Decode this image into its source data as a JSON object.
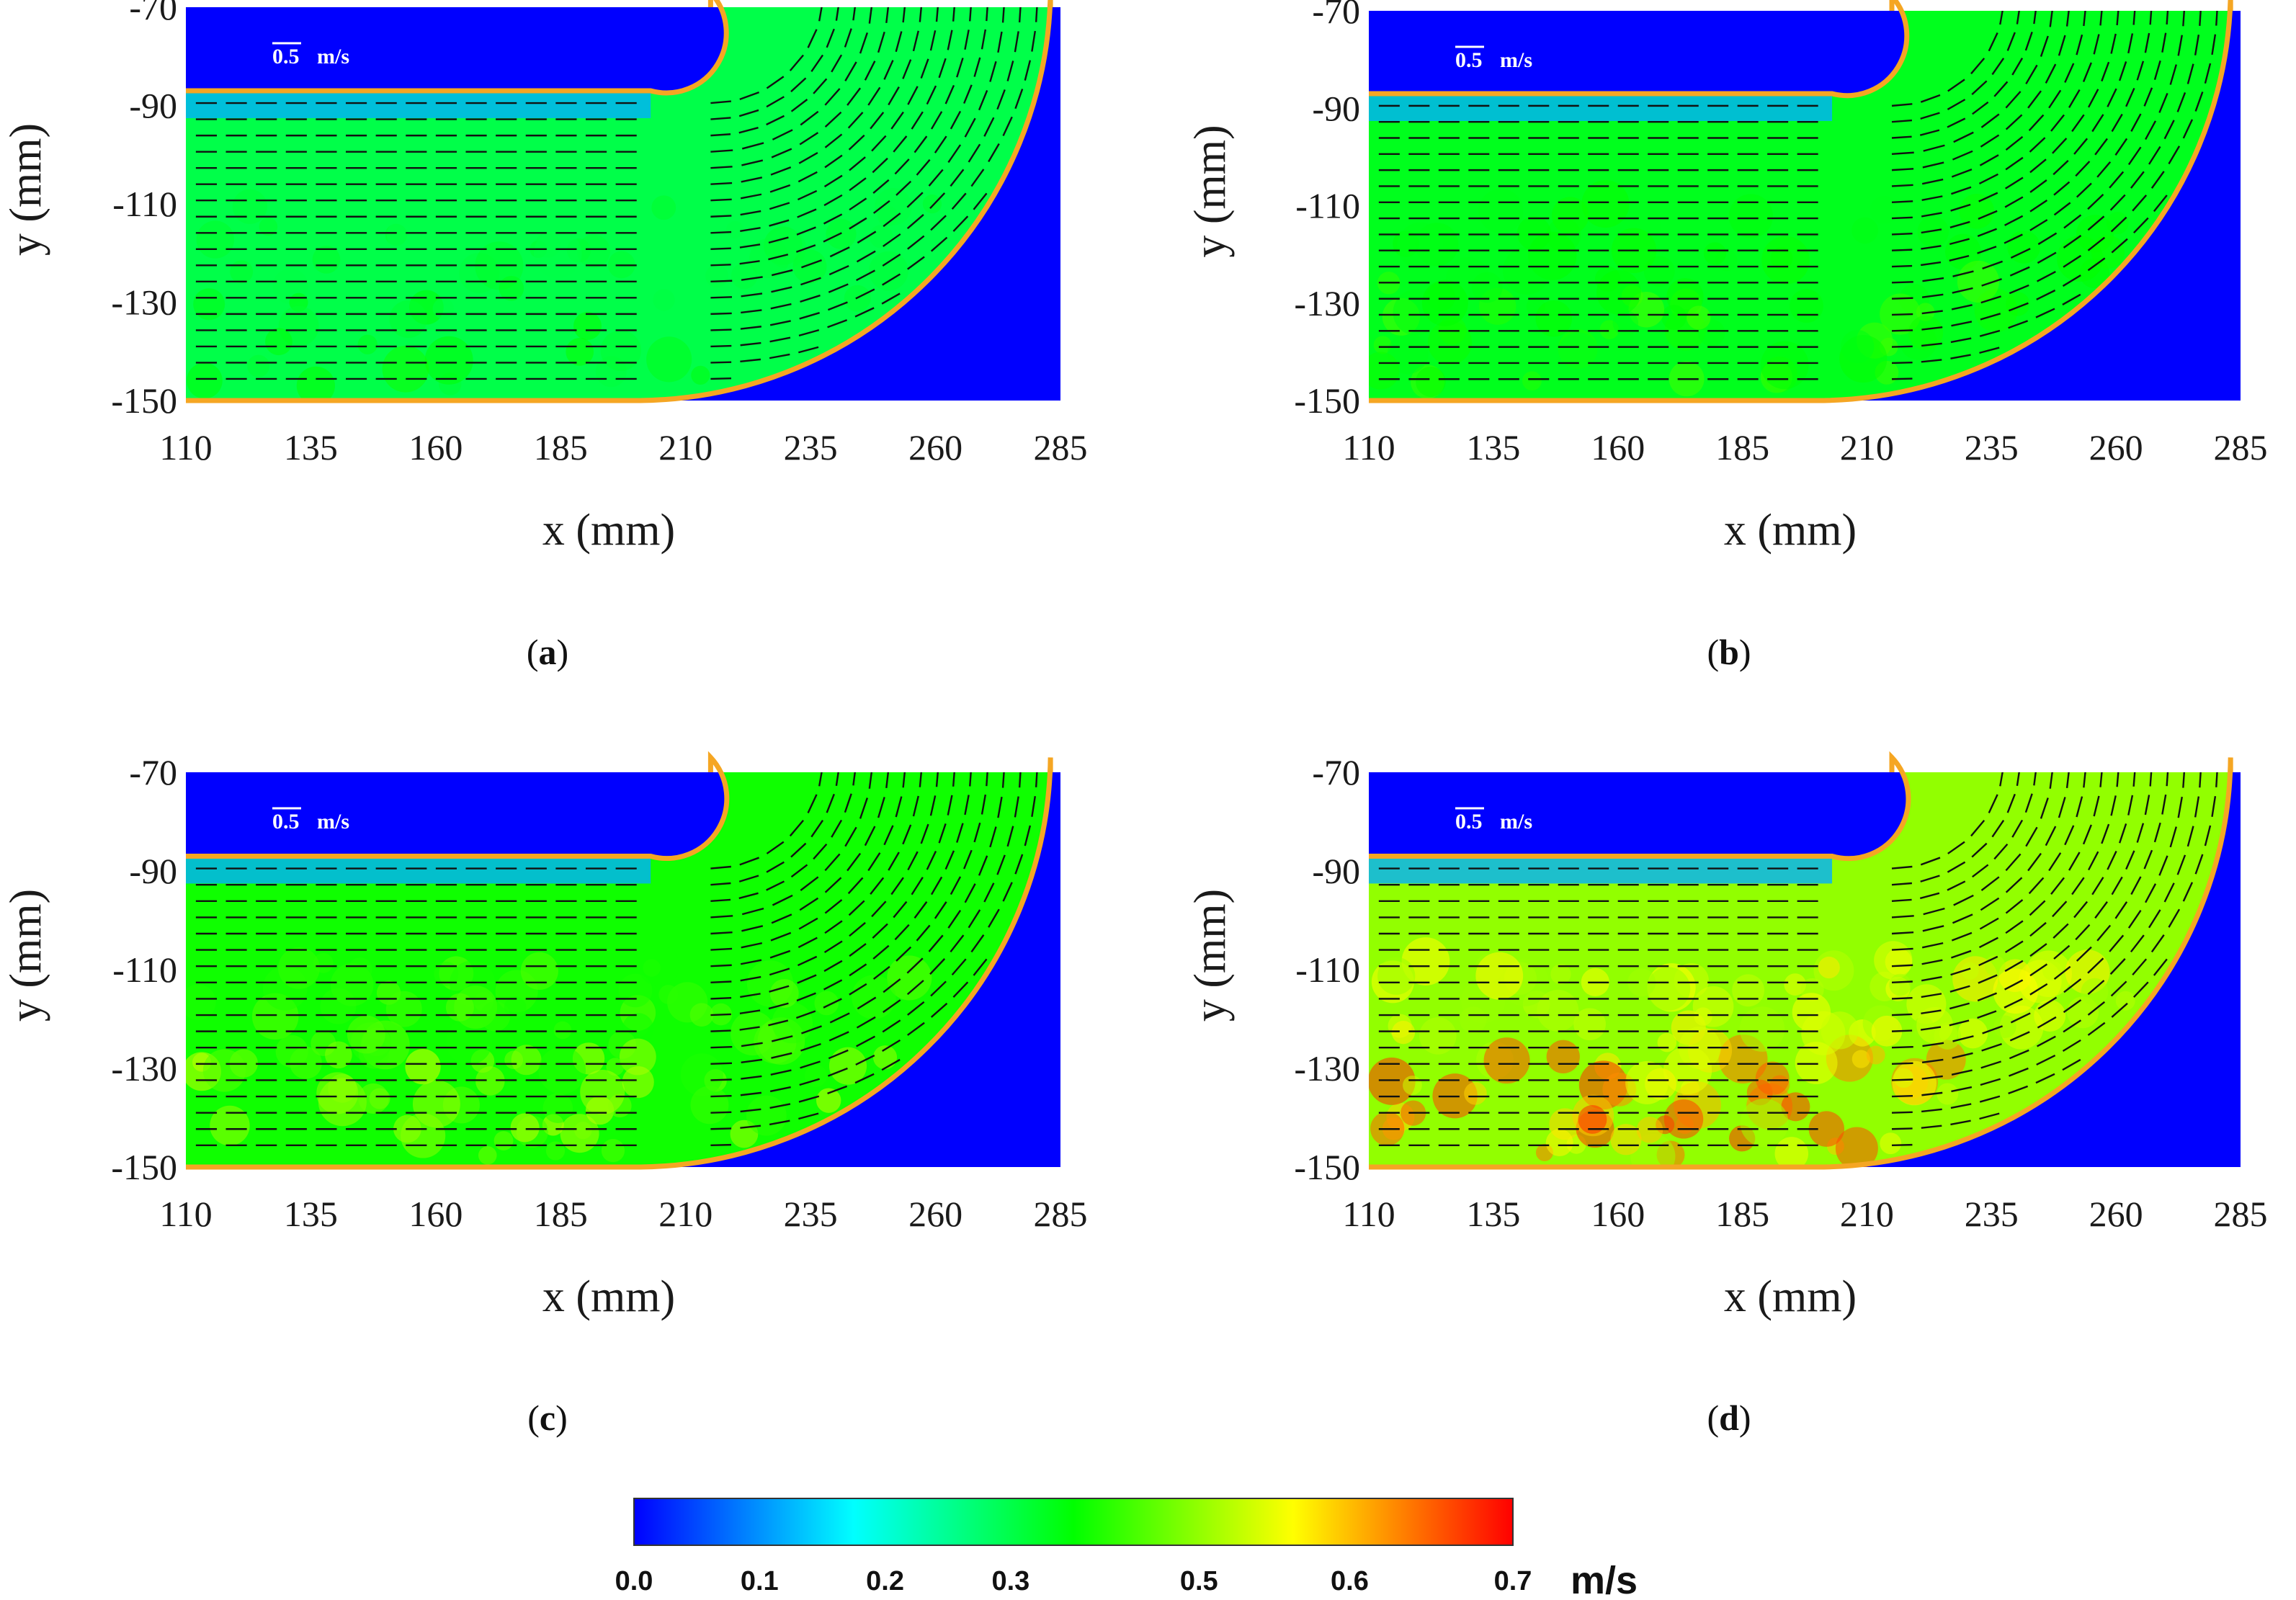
{
  "chart_data": [
    {
      "type": "heatmap",
      "panel": "a",
      "caption_letter": "a",
      "xlabel": "x (mm)",
      "ylabel": "y (mm)",
      "xlim": [
        110,
        285
      ],
      "ylim": [
        -150,
        -70
      ],
      "xticks": [
        "110",
        "135",
        "160",
        "185",
        "210",
        "235",
        "260",
        "285"
      ],
      "yticks": [
        "-70",
        "-90",
        "-110",
        "-130",
        "-150"
      ],
      "reference_vector": {
        "value": "0.5",
        "unit": "m/s"
      },
      "bulk_velocity": 0.3,
      "peak_velocity": 0.36
    },
    {
      "type": "heatmap",
      "panel": "b",
      "caption_letter": "b",
      "xlabel": "x (mm)",
      "ylabel": "y (mm)",
      "xlim": [
        110,
        285
      ],
      "ylim": [
        -150,
        -70
      ],
      "xticks": [
        "110",
        "135",
        "160",
        "185",
        "210",
        "235",
        "260",
        "285"
      ],
      "yticks": [
        "-70",
        "-90",
        "-110",
        "-130",
        "-150"
      ],
      "reference_vector": {
        "value": "0.5",
        "unit": "m/s"
      },
      "bulk_velocity": 0.33,
      "peak_velocity": 0.4
    },
    {
      "type": "heatmap",
      "panel": "c",
      "caption_letter": "c",
      "xlabel": "x (mm)",
      "ylabel": "y (mm)",
      "xlim": [
        110,
        285
      ],
      "ylim": [
        -150,
        -70
      ],
      "xticks": [
        "110",
        "135",
        "160",
        "185",
        "210",
        "235",
        "260",
        "285"
      ],
      "yticks": [
        "-70",
        "-90",
        "-110",
        "-130",
        "-150"
      ],
      "reference_vector": {
        "value": "0.5",
        "unit": "m/s"
      },
      "bulk_velocity": 0.36,
      "peak_velocity": 0.5
    },
    {
      "type": "heatmap",
      "panel": "d",
      "caption_letter": "d",
      "xlabel": "x (mm)",
      "ylabel": "y (mm)",
      "xlim": [
        110,
        285
      ],
      "ylim": [
        -150,
        -70
      ],
      "xticks": [
        "110",
        "135",
        "160",
        "185",
        "210",
        "235",
        "260",
        "285"
      ],
      "yticks": [
        "-70",
        "-90",
        "-110",
        "-130",
        "-150"
      ],
      "reference_vector": {
        "value": "0.5",
        "unit": "m/s"
      },
      "bulk_velocity": 0.45,
      "peak_velocity": 0.68
    }
  ],
  "colorbar": {
    "ticks": [
      "0.0",
      "0.1",
      "0.2",
      "0.3",
      "0.5",
      "0.6",
      "0.7"
    ],
    "range": [
      0.0,
      0.7
    ],
    "unit": "m/s",
    "colormap": [
      "#0000ff",
      "#00ffff",
      "#00ff00",
      "#ffff00",
      "#ff0000"
    ]
  },
  "colors": {
    "solid": "#0000ff",
    "wall": "#f5a623",
    "arrow": "#111111"
  }
}
